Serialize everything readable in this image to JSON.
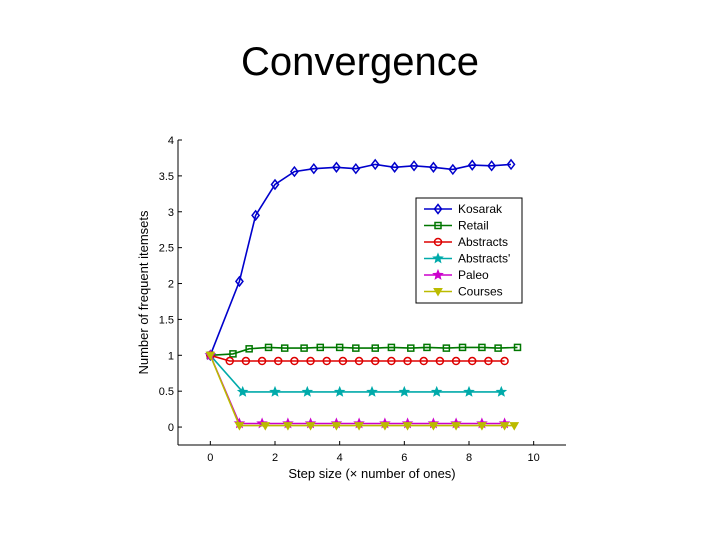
{
  "slide": {
    "title": "Convergence"
  },
  "chart_data": {
    "type": "line",
    "title": "",
    "xlabel": "Step size (× number of ones)",
    "ylabel": "Number of frequent itemsets",
    "xlim": [
      -1,
      11
    ],
    "ylim": [
      -0.25,
      4
    ],
    "xticks": [
      0,
      2,
      4,
      6,
      8,
      10
    ],
    "yticks": [
      0,
      0.5,
      1,
      1.5,
      2,
      2.5,
      3,
      3.5,
      4
    ],
    "legend_position": "right",
    "series": [
      {
        "name": "Kosarak",
        "color": "#0000cc",
        "marker": "diamond",
        "x": [
          0,
          0.9,
          1.4,
          2,
          2.6,
          3.2,
          3.9,
          4.5,
          5.1,
          5.7,
          6.3,
          6.9,
          7.5,
          8.1,
          8.7,
          9.3
        ],
        "y": [
          1,
          2.03,
          2.95,
          3.38,
          3.56,
          3.6,
          3.62,
          3.6,
          3.66,
          3.62,
          3.64,
          3.62,
          3.59,
          3.65,
          3.64,
          3.66
        ]
      },
      {
        "name": "Retail",
        "color": "#007700",
        "marker": "square",
        "x": [
          0,
          0.7,
          1.2,
          1.8,
          2.3,
          2.9,
          3.4,
          4.0,
          4.5,
          5.1,
          5.6,
          6.2,
          6.7,
          7.3,
          7.8,
          8.4,
          8.9,
          9.5
        ],
        "y": [
          1,
          1.02,
          1.09,
          1.11,
          1.1,
          1.1,
          1.11,
          1.11,
          1.1,
          1.1,
          1.11,
          1.1,
          1.11,
          1.1,
          1.11,
          1.11,
          1.1,
          1.11
        ]
      },
      {
        "name": "Abstracts",
        "color": "#dd0000",
        "marker": "circle",
        "x": [
          0,
          0.6,
          1.1,
          1.6,
          2.1,
          2.6,
          3.1,
          3.6,
          4.1,
          4.6,
          5.1,
          5.6,
          6.1,
          6.6,
          7.1,
          7.6,
          8.1,
          8.6,
          9.1
        ],
        "y": [
          1,
          0.92,
          0.92,
          0.92,
          0.92,
          0.92,
          0.92,
          0.92,
          0.92,
          0.92,
          0.92,
          0.92,
          0.92,
          0.92,
          0.92,
          0.92,
          0.92,
          0.92,
          0.92
        ]
      },
      {
        "name": "Abstracts'",
        "color": "#00aaaa",
        "marker": "star",
        "x": [
          0,
          1,
          2,
          3,
          4,
          5,
          6,
          7,
          8,
          9
        ],
        "y": [
          1,
          0.49,
          0.49,
          0.49,
          0.49,
          0.49,
          0.49,
          0.49,
          0.49,
          0.49
        ]
      },
      {
        "name": "Paleo",
        "color": "#cc00cc",
        "marker": "star",
        "x": [
          0,
          0.9,
          1.6,
          2.4,
          3.1,
          3.9,
          4.6,
          5.4,
          6.1,
          6.9,
          7.6,
          8.4,
          9.1
        ],
        "y": [
          1,
          0.05,
          0.05,
          0.05,
          0.05,
          0.05,
          0.05,
          0.05,
          0.05,
          0.05,
          0.05,
          0.05,
          0.05
        ]
      },
      {
        "name": "Courses",
        "color": "#bbbb00",
        "marker": "triangle-down",
        "x": [
          0,
          0.9,
          1.7,
          2.4,
          3.1,
          3.9,
          4.6,
          5.4,
          6.1,
          6.9,
          7.6,
          8.4,
          9.1,
          9.4
        ],
        "y": [
          1,
          0.02,
          0.02,
          0.02,
          0.02,
          0.02,
          0.02,
          0.02,
          0.02,
          0.02,
          0.02,
          0.02,
          0.02,
          0.02
        ]
      }
    ]
  }
}
